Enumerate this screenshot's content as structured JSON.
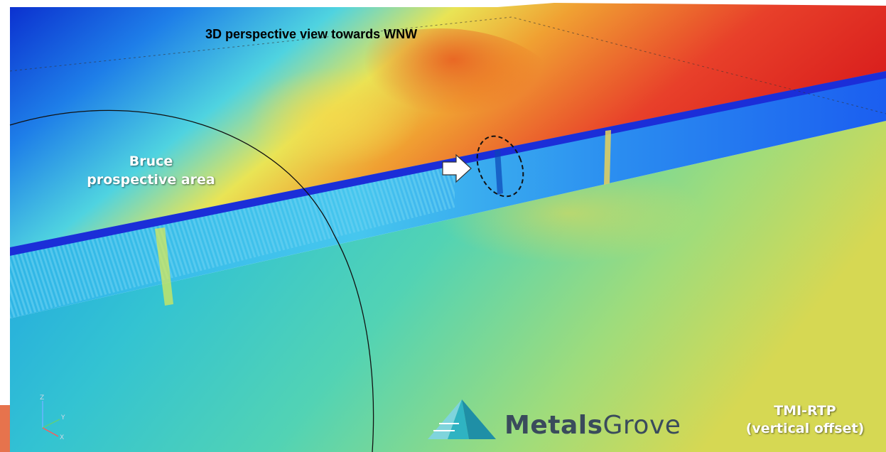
{
  "map": {
    "title": "3D perspective view towards WNW",
    "area_label_line1": "Bruce",
    "area_label_line2": "prospective area",
    "dataset_label_line1": "TMI-RTP",
    "dataset_label_line2": "(vertical offset)"
  },
  "logo": {
    "bold_part": "Metals",
    "light_part": "Grove"
  },
  "axes": {
    "z": "Z",
    "y": "Y",
    "x": "X"
  },
  "colors": {
    "high": "#e0241c",
    "mid": "#f2c33a",
    "low_mid": "#3cc4c4",
    "low": "#0a2fd0",
    "logo_text": "#3a4b5c",
    "logo_teal": "#2fb3c2"
  },
  "icons": [
    "white-arrow-icon",
    "dashed-ellipse-marker",
    "xyz-axes-icon",
    "metalsgrove-pyramid-icon"
  ]
}
